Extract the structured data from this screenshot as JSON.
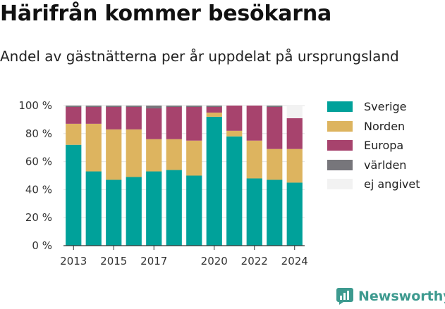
{
  "title": "Härifrån kommer besökarna",
  "subtitle": "Andel av gästnätterna per år uppdelat på ursprungsland",
  "brand": {
    "name": "Newsworthy",
    "icon": "newsworthy-logo-icon"
  },
  "chart_data": {
    "type": "bar",
    "stacked": true,
    "categories": [
      "2013",
      "2014",
      "2015",
      "2016",
      "2017",
      "2018",
      "2019",
      "2020",
      "2021",
      "2022",
      "2023",
      "2024"
    ],
    "x_tick_labels": [
      "2013",
      "",
      "2015",
      "",
      "2017",
      "",
      "",
      "2020",
      "",
      "2022",
      "",
      "2024"
    ],
    "ylim": [
      0,
      100
    ],
    "y_ticks": [
      0,
      20,
      40,
      60,
      80,
      100
    ],
    "y_tick_labels": [
      "0 %",
      "20 %",
      "40 %",
      "60 %",
      "80 %",
      "100 %"
    ],
    "grid": true,
    "legend_position": "right",
    "series": [
      {
        "name": "Sverige",
        "color": "#00a19a",
        "values": [
          72,
          53,
          47,
          49,
          53,
          54,
          50,
          92,
          78,
          48,
          47,
          45
        ]
      },
      {
        "name": "Norden",
        "color": "#ddb45f",
        "values": [
          15,
          34,
          36,
          34,
          23,
          22,
          25,
          3,
          4,
          27,
          22,
          24
        ]
      },
      {
        "name": "Europa",
        "color": "#a7436d",
        "values": [
          12,
          12,
          16,
          16,
          22,
          23,
          24,
          4,
          18,
          25,
          30,
          22
        ]
      },
      {
        "name": "världen",
        "color": "#77767b",
        "values": [
          1,
          1,
          1,
          1,
          2,
          1,
          1,
          1,
          0,
          0,
          1,
          0
        ]
      },
      {
        "name": "ej angivet",
        "color": "#f2f2f2",
        "values": [
          0,
          0,
          0,
          0,
          0,
          0,
          0,
          0,
          0,
          0,
          0,
          9
        ]
      }
    ]
  }
}
